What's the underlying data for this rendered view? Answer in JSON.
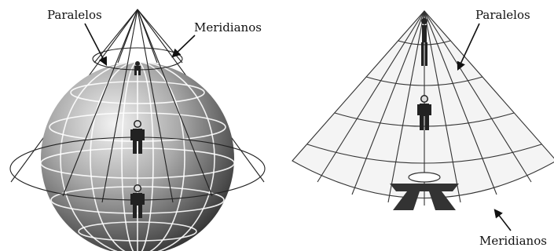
{
  "left_panel": {
    "label_parallels": "Paralelos",
    "label_meridians": "Meridianos"
  },
  "right_panel": {
    "label_parallels": "Paralelos",
    "label_meridians": "Meridianos"
  }
}
